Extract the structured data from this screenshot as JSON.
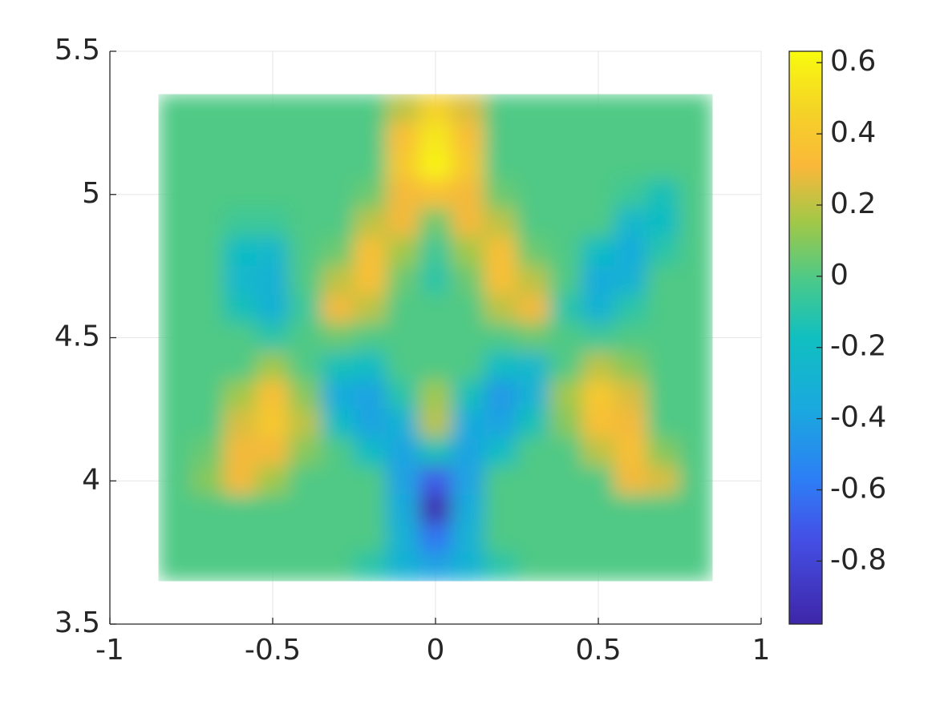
{
  "chart_data": {
    "type": "heatmap",
    "colormap": "parula",
    "x": [
      -0.8,
      -0.7,
      -0.6,
      -0.5,
      -0.4,
      -0.3,
      -0.2,
      -0.1,
      0,
      0.1,
      0.2,
      0.3,
      0.4,
      0.5,
      0.6,
      0.7,
      0.8
    ],
    "y": [
      5.3,
      5.2,
      5.1,
      5.0,
      4.9,
      4.8,
      4.7,
      4.6,
      4.5,
      4.4,
      4.3,
      4.2,
      4.1,
      4.0,
      3.9,
      3.8,
      3.7
    ],
    "values": [
      [
        0,
        0,
        0,
        0,
        0,
        0,
        0,
        0.2,
        0.45,
        0.25,
        0,
        0,
        0,
        0,
        0,
        0,
        0
      ],
      [
        0,
        0,
        0,
        0,
        0,
        0,
        0,
        0.35,
        0.55,
        0.35,
        0,
        0,
        0,
        0,
        0,
        0,
        0
      ],
      [
        0,
        0,
        0,
        0,
        0,
        0,
        0,
        0.4,
        0.6,
        0.4,
        0,
        0,
        0,
        0,
        0,
        0,
        0
      ],
      [
        0,
        0,
        0,
        0,
        0,
        0,
        0.05,
        0.3,
        0.35,
        0.3,
        0.05,
        0,
        0,
        0,
        -0.05,
        -0.15,
        0
      ],
      [
        0,
        0,
        -0.05,
        -0.05,
        0,
        0,
        0.2,
        0.3,
        0.05,
        0.3,
        0.2,
        0,
        0,
        0,
        -0.25,
        -0.2,
        0
      ],
      [
        0,
        0,
        -0.2,
        -0.25,
        0,
        0.05,
        0.35,
        0.15,
        -0.05,
        0.15,
        0.35,
        0.05,
        0,
        -0.2,
        -0.35,
        -0.1,
        0
      ],
      [
        0,
        0,
        -0.25,
        -0.3,
        0,
        0.2,
        0.35,
        0.05,
        -0.1,
        0.05,
        0.35,
        0.2,
        0,
        -0.35,
        -0.3,
        0,
        0
      ],
      [
        0,
        0,
        -0.15,
        -0.3,
        -0.05,
        0.3,
        0.2,
        0,
        0,
        0,
        0.2,
        0.3,
        -0.1,
        -0.3,
        -0.1,
        0,
        0
      ],
      [
        0,
        0,
        0,
        -0.1,
        0,
        0.05,
        0,
        0,
        0,
        0,
        0,
        0.05,
        0,
        -0.05,
        0,
        0,
        0
      ],
      [
        0,
        0,
        0,
        0.15,
        0,
        -0.15,
        -0.2,
        0,
        0,
        0,
        -0.2,
        -0.25,
        0,
        0.2,
        0.1,
        0,
        0
      ],
      [
        0,
        0,
        0.15,
        0.35,
        0.1,
        -0.35,
        -0.4,
        -0.1,
        0.15,
        -0.15,
        -0.45,
        -0.3,
        0.15,
        0.4,
        0.25,
        0,
        0
      ],
      [
        0,
        0,
        0.25,
        0.4,
        0.2,
        -0.2,
        -0.4,
        -0.3,
        0.2,
        -0.35,
        -0.4,
        -0.15,
        0.1,
        0.35,
        0.3,
        0,
        0
      ],
      [
        0,
        0.05,
        0.3,
        0.3,
        0.1,
        0,
        -0.2,
        -0.4,
        -0.15,
        -0.4,
        -0.2,
        0,
        0,
        0.2,
        0.35,
        0.1,
        0
      ],
      [
        0,
        0.1,
        0.3,
        0.15,
        0,
        0,
        0,
        -0.4,
        -0.7,
        -0.4,
        0,
        0,
        0,
        0,
        0.3,
        0.25,
        0
      ],
      [
        0,
        0,
        0,
        0,
        0,
        0,
        0,
        -0.35,
        -0.95,
        -0.35,
        0,
        0,
        0,
        0,
        0,
        0,
        0
      ],
      [
        0,
        0,
        0,
        0,
        0,
        0,
        0,
        -0.3,
        -0.6,
        -0.3,
        0,
        0,
        0,
        0,
        0,
        0,
        0
      ],
      [
        0,
        0,
        0,
        0,
        0,
        0,
        -0.1,
        -0.3,
        -0.4,
        -0.3,
        -0.1,
        0,
        0,
        0,
        0,
        0,
        0
      ]
    ],
    "xlim": [
      -1,
      1
    ],
    "ylim": [
      3.5,
      5.5
    ],
    "xticks": [
      -1,
      -0.5,
      0,
      0.5,
      1
    ],
    "yticks": [
      3.5,
      4,
      4.5,
      5,
      5.5
    ],
    "grid": true,
    "colorbar": {
      "clim": [
        -0.977,
        0.632
      ],
      "ticks": [
        -0.8,
        -0.6,
        -0.4,
        -0.2,
        0,
        0.2,
        0.4,
        0.6
      ]
    }
  }
}
